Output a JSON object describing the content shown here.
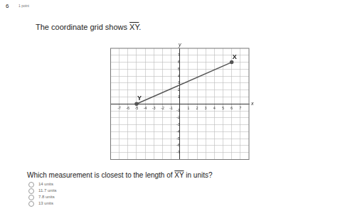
{
  "header": {
    "number": "6",
    "points": "1 point"
  },
  "question": {
    "prefix": "The coordinate grid shows",
    "segment": "XY",
    "suffix": "."
  },
  "prompt": {
    "prefix": "Which measurement is closest to the length of",
    "segment": "XY",
    "suffix": "in units?"
  },
  "answer_choices": [
    "14 units",
    "11.7 units",
    "7.8 units",
    "13 units"
  ],
  "chart_data": {
    "type": "line",
    "x_label": "x",
    "y_label": "y",
    "points": [
      {
        "label": "Y",
        "x": -5,
        "y": 0
      },
      {
        "label": "X",
        "x": 6,
        "y": 6
      }
    ],
    "color": "#555555",
    "marker": "circle",
    "xlim": [
      -8,
      8
    ],
    "ylim": [
      -8,
      8
    ],
    "xticks": [
      -7,
      -6,
      -5,
      -4,
      -3,
      -2,
      -1,
      1,
      2,
      3,
      4,
      5,
      6,
      7
    ],
    "yticks": [
      -7,
      -6,
      -5,
      -4,
      -3,
      -2,
      -1,
      1,
      2,
      3,
      4,
      5,
      6,
      7
    ],
    "grid": true
  }
}
